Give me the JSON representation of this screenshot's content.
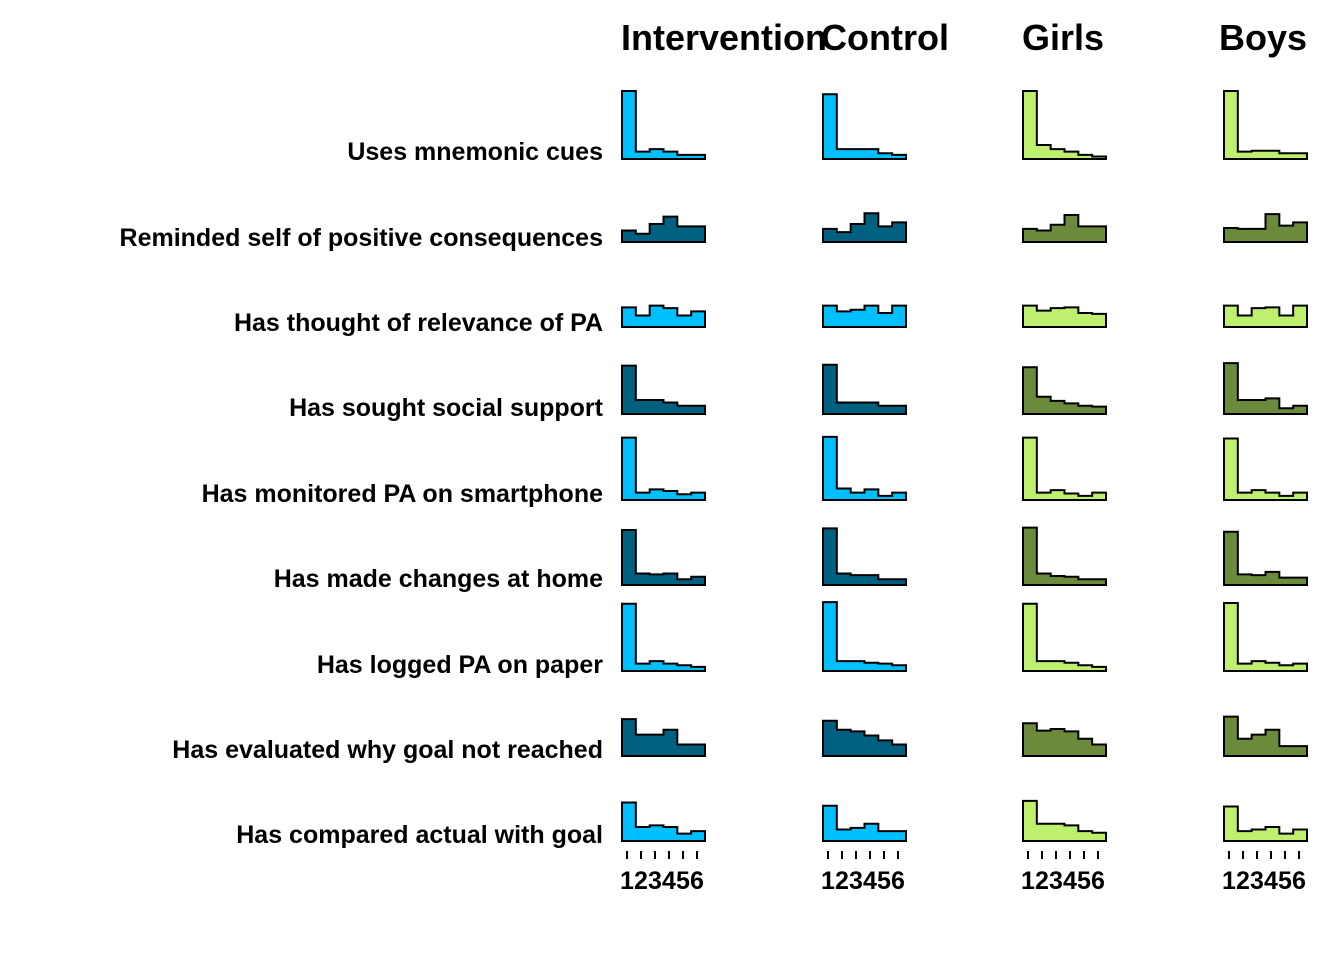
{
  "chart_data": {
    "type": "bar",
    "subtype": "small-multiple step histograms",
    "columns": [
      "Intervention",
      "Control",
      "Girls",
      "Boys"
    ],
    "x_ticks": [
      "1",
      "2",
      "3",
      "4",
      "5",
      "6"
    ],
    "grid": false,
    "legend": "none",
    "colors": {
      "intervention_light": "#00BFFF",
      "intervention_dark": "#00607F",
      "control_light": "#00BFFF",
      "control_dark": "#00607F",
      "girls_light": "#BFEF6F",
      "girls_dark": "#6B8A3C",
      "boys_light": "#BFEF6F",
      "boys_dark": "#6B8A3C",
      "outline": "#000000"
    },
    "rows": [
      {
        "label": "Uses mnemonic cues",
        "shade": "light",
        "values": [
          [
            83,
            9,
            12,
            9,
            5,
            5
          ],
          [
            79,
            12,
            12,
            12,
            7,
            5
          ],
          [
            83,
            17,
            12,
            9,
            5,
            3
          ],
          [
            83,
            9,
            10,
            10,
            7,
            7
          ]
        ]
      },
      {
        "label": "Reminded self of positive consequences",
        "shade": "dark",
        "values": [
          [
            14,
            10,
            22,
            31,
            19,
            19
          ],
          [
            16,
            12,
            22,
            35,
            19,
            24
          ],
          [
            16,
            14,
            21,
            33,
            19,
            19
          ],
          [
            17,
            16,
            16,
            34,
            20,
            24
          ]
        ]
      },
      {
        "label": "Has thought of relevance of PA",
        "shade": "light",
        "values": [
          [
            24,
            14,
            26,
            23,
            14,
            19
          ],
          [
            26,
            19,
            21,
            26,
            17,
            26
          ],
          [
            26,
            20,
            23,
            24,
            17,
            16
          ],
          [
            26,
            14,
            23,
            24,
            14,
            26
          ]
        ]
      },
      {
        "label": "Has sought social support",
        "shade": "dark",
        "values": [
          [
            59,
            17,
            17,
            14,
            10,
            10
          ],
          [
            60,
            14,
            14,
            14,
            10,
            10
          ],
          [
            57,
            21,
            16,
            13,
            10,
            9
          ],
          [
            62,
            17,
            17,
            19,
            7,
            10
          ]
        ]
      },
      {
        "label": "Has monitored PA on smartphone",
        "shade": "light",
        "values": [
          [
            76,
            9,
            13,
            11,
            7,
            9
          ],
          [
            77,
            14,
            9,
            13,
            5,
            9
          ],
          [
            76,
            9,
            12,
            8,
            5,
            9
          ],
          [
            75,
            9,
            12,
            9,
            5,
            9
          ]
        ]
      },
      {
        "label": "Has made changes at home",
        "shade": "dark",
        "values": [
          [
            67,
            14,
            13,
            14,
            7,
            10
          ],
          [
            69,
            14,
            12,
            12,
            7,
            7
          ],
          [
            70,
            14,
            11,
            10,
            7,
            7
          ],
          [
            65,
            13,
            12,
            16,
            9,
            9
          ]
        ]
      },
      {
        "label": "Has logged PA on paper",
        "shade": "light",
        "values": [
          [
            82,
            9,
            12,
            9,
            7,
            5
          ],
          [
            84,
            12,
            12,
            10,
            9,
            7
          ],
          [
            82,
            12,
            12,
            10,
            7,
            5
          ],
          [
            83,
            9,
            12,
            10,
            7,
            9
          ]
        ]
      },
      {
        "label": "Has evaluated why goal not reached",
        "shade": "dark",
        "values": [
          [
            45,
            26,
            26,
            32,
            14,
            14
          ],
          [
            43,
            32,
            30,
            25,
            19,
            14
          ],
          [
            40,
            31,
            33,
            30,
            21,
            14
          ],
          [
            48,
            21,
            26,
            32,
            12,
            12
          ]
        ]
      },
      {
        "label": "Has compared actual with goal",
        "shade": "light",
        "values": [
          [
            47,
            17,
            19,
            17,
            9,
            12
          ],
          [
            43,
            14,
            16,
            21,
            12,
            12
          ],
          [
            49,
            21,
            21,
            19,
            12,
            10
          ],
          [
            42,
            12,
            14,
            17,
            9,
            14
          ]
        ]
      }
    ]
  }
}
